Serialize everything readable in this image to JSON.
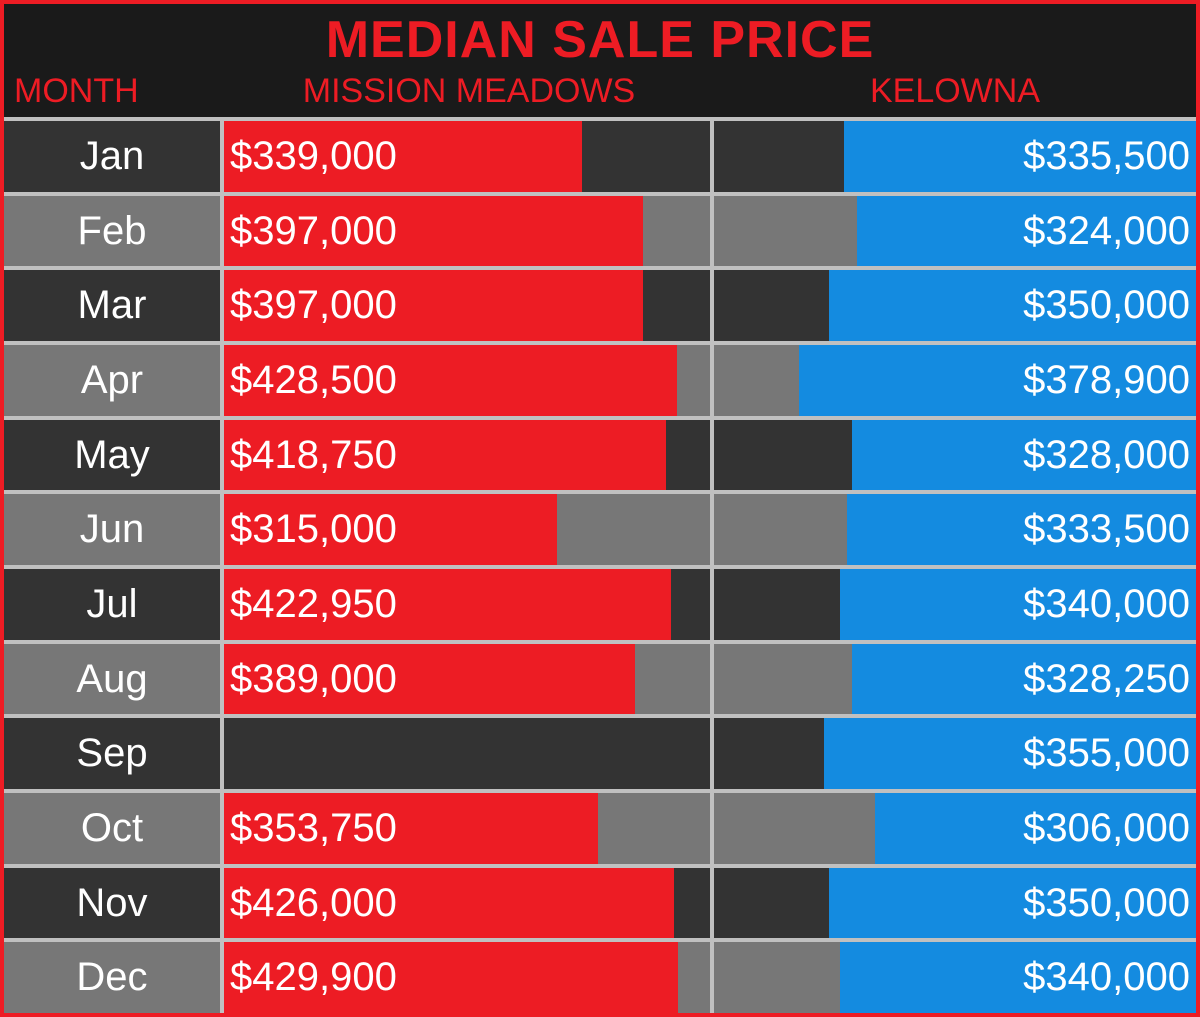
{
  "title": "MEDIAN SALE PRICE",
  "columns": {
    "month": "MONTH",
    "mm": "MISSION MEADOWS",
    "kel": "KELOWNA"
  },
  "style": {
    "type": "bar-table",
    "accent_red": "#ed1c24",
    "accent_blue": "#148be0",
    "row_odd_bg": "#333333",
    "row_even_bg": "#777777",
    "border_color": "#c0c0c0",
    "outer_border_color": "#ed1c24",
    "text_color": "#ffffff",
    "title_fontsize": 52,
    "header_fontsize": 34,
    "cell_fontsize": 40,
    "mm_bar_direction": "left-to-right",
    "kel_bar_direction": "right-to-left",
    "mm_bar_max_value": 460000,
    "kel_bar_max_value": 460000
  },
  "rows": [
    {
      "month": "Jan",
      "mm_value": 339000,
      "mm_label": "$339,000",
      "kel_value": 335500,
      "kel_label": "$335,500"
    },
    {
      "month": "Feb",
      "mm_value": 397000,
      "mm_label": "$397,000",
      "kel_value": 324000,
      "kel_label": "$324,000"
    },
    {
      "month": "Mar",
      "mm_value": 397000,
      "mm_label": "$397,000",
      "kel_value": 350000,
      "kel_label": "$350,000"
    },
    {
      "month": "Apr",
      "mm_value": 428500,
      "mm_label": "$428,500",
      "kel_value": 378900,
      "kel_label": "$378,900"
    },
    {
      "month": "May",
      "mm_value": 418750,
      "mm_label": "$418,750",
      "kel_value": 328000,
      "kel_label": "$328,000"
    },
    {
      "month": "Jun",
      "mm_value": 315000,
      "mm_label": "$315,000",
      "kel_value": 333500,
      "kel_label": "$333,500"
    },
    {
      "month": "Jul",
      "mm_value": 422950,
      "mm_label": "$422,950",
      "kel_value": 340000,
      "kel_label": "$340,000"
    },
    {
      "month": "Aug",
      "mm_value": 389000,
      "mm_label": "$389,000",
      "kel_value": 328250,
      "kel_label": "$328,250"
    },
    {
      "month": "Sep",
      "mm_value": null,
      "mm_label": "",
      "kel_value": 355000,
      "kel_label": "$355,000"
    },
    {
      "month": "Oct",
      "mm_value": 353750,
      "mm_label": "$353,750",
      "kel_value": 306000,
      "kel_label": "$306,000"
    },
    {
      "month": "Nov",
      "mm_value": 426000,
      "mm_label": "$426,000",
      "kel_value": 350000,
      "kel_label": "$350,000"
    },
    {
      "month": "Dec",
      "mm_value": 429900,
      "mm_label": "$429,900",
      "kel_value": 340000,
      "kel_label": "$340,000"
    }
  ]
}
